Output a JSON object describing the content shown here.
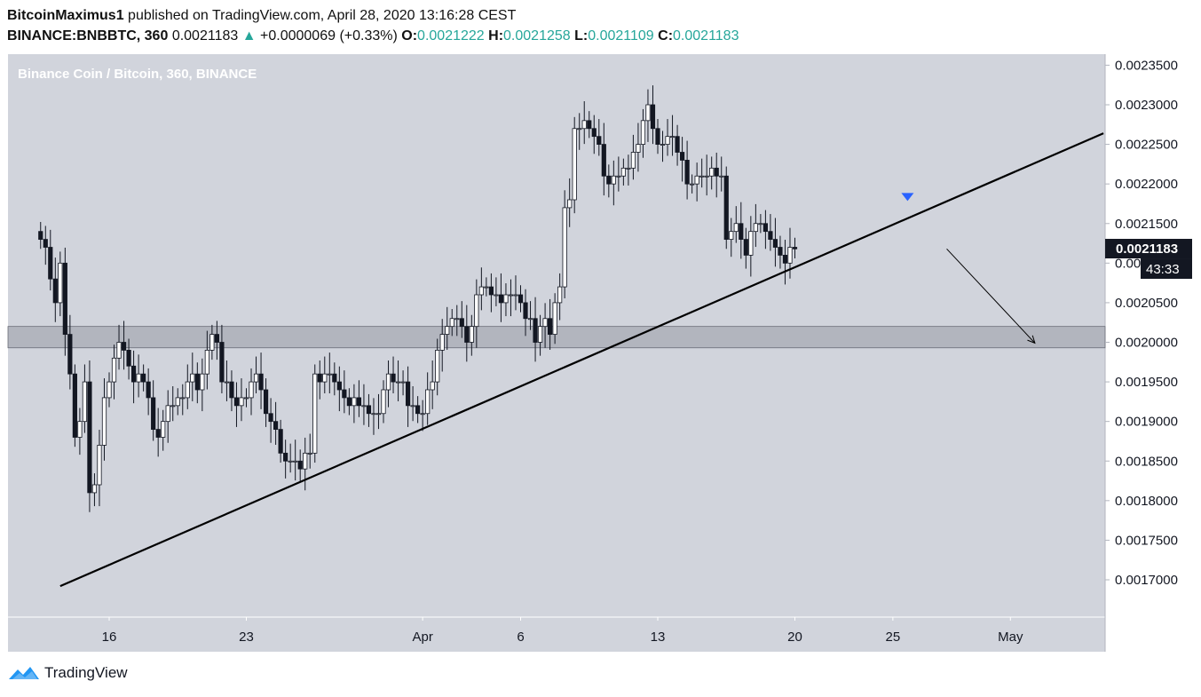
{
  "header": {
    "author": "BitcoinMaximus1",
    "published_text": "published on TradingView.com, April 28, 2020 13:16:28 CEST",
    "symbol": "BINANCE:BNBBTC, 360",
    "last": "0.0021183",
    "change": "+0.0000069 (+0.33%)",
    "o_label": "O:",
    "o_value": "0.0021222",
    "h_label": "H:",
    "h_value": "0.0021258",
    "l_label": "L:",
    "l_value": "0.0021109",
    "c_label": "C:",
    "c_value": "0.0021183"
  },
  "footer": {
    "brand": "TradingView"
  },
  "colors": {
    "plot_bg": "#d1d4dc",
    "up": "#ffffff",
    "down": "#131722",
    "accent": "#26a69a",
    "zone": "#b2b5be",
    "marker": "#2962ff"
  },
  "chart_data": {
    "type": "candlestick",
    "title": "Binance Coin / Bitcoin, 360, BINANCE",
    "x_tick_labels": [
      "16",
      "23",
      "Apr",
      "6",
      "13",
      "20",
      "25",
      "May"
    ],
    "y_ticks": [
      "0.0023500",
      "0.0023000",
      "0.0022500",
      "0.0022000",
      "0.0021500",
      "0.0021000",
      "0.0020500",
      "0.0020000",
      "0.0019500",
      "0.0019000",
      "0.0018500",
      "0.0018000",
      "0.0017500",
      "0.0017000"
    ],
    "ylim": [
      0.00166,
      0.00237
    ],
    "current_price_label": "0.0021183",
    "countdown_label": "43:33",
    "support_zone": [
      0.001993,
      0.00202
    ],
    "trendline": [
      {
        "date": "2020-03-13 12:00",
        "price": 0.001692
      },
      {
        "date": "2020-05-05 18:00",
        "price": 0.002264
      }
    ],
    "projection_arrow": [
      {
        "date": "2020-04-27 18:00",
        "price": 0.002118
      },
      {
        "date": "2020-05-02 06:00",
        "price": 0.001999
      }
    ],
    "sell_marker": {
      "date": "2020-04-25 18:00",
      "price": 0.002183
    },
    "candle_interval": "6h",
    "first_candle": "2020-03-12 12:00",
    "closes": [
      0.00213,
      0.00212,
      0.00208,
      0.00205,
      0.0021,
      0.00201,
      0.00196,
      0.00188,
      0.0019,
      0.00195,
      0.00181,
      0.00182,
      0.00187,
      0.00193,
      0.00195,
      0.00198,
      0.002,
      0.00199,
      0.00197,
      0.00195,
      0.00196,
      0.00195,
      0.00193,
      0.00189,
      0.00188,
      0.0019,
      0.00192,
      0.00192,
      0.00193,
      0.00193,
      0.00195,
      0.00196,
      0.00194,
      0.00196,
      0.00199,
      0.00201,
      0.002,
      0.00195,
      0.00195,
      0.00193,
      0.00192,
      0.00193,
      0.00193,
      0.00195,
      0.00196,
      0.00194,
      0.00191,
      0.0019,
      0.00189,
      0.00186,
      0.00185,
      0.00185,
      0.00185,
      0.00184,
      0.00186,
      0.00186,
      0.00196,
      0.00195,
      0.00196,
      0.00196,
      0.00195,
      0.00194,
      0.00193,
      0.00192,
      0.00193,
      0.00192,
      0.00192,
      0.00191,
      0.00191,
      0.00191,
      0.00194,
      0.00196,
      0.00195,
      0.00195,
      0.00195,
      0.00192,
      0.00192,
      0.00191,
      0.00191,
      0.00194,
      0.00195,
      0.00199,
      0.00201,
      0.00202,
      0.00203,
      0.00203,
      0.00202,
      0.002,
      0.00202,
      0.00206,
      0.00207,
      0.00207,
      0.00206,
      0.00206,
      0.00205,
      0.00206,
      0.00206,
      0.00206,
      0.00205,
      0.00203,
      0.00203,
      0.002,
      0.00202,
      0.00203,
      0.00201,
      0.00205,
      0.00207,
      0.00217,
      0.00218,
      0.00227,
      0.00227,
      0.00228,
      0.00227,
      0.00226,
      0.00225,
      0.00221,
      0.0022,
      0.00221,
      0.00221,
      0.00222,
      0.00222,
      0.00224,
      0.00225,
      0.00228,
      0.0023,
      0.00227,
      0.00225,
      0.00225,
      0.00226,
      0.00226,
      0.00224,
      0.00223,
      0.0022,
      0.0022,
      0.00221,
      0.00221,
      0.00221,
      0.00222,
      0.00221,
      0.00221,
      0.00213,
      0.00214,
      0.00215,
      0.00213,
      0.00211,
      0.00214,
      0.00215,
      0.00215,
      0.00214,
      0.00213,
      0.00212,
      0.00211,
      0.0021,
      0.00212,
      0.002118
    ]
  }
}
